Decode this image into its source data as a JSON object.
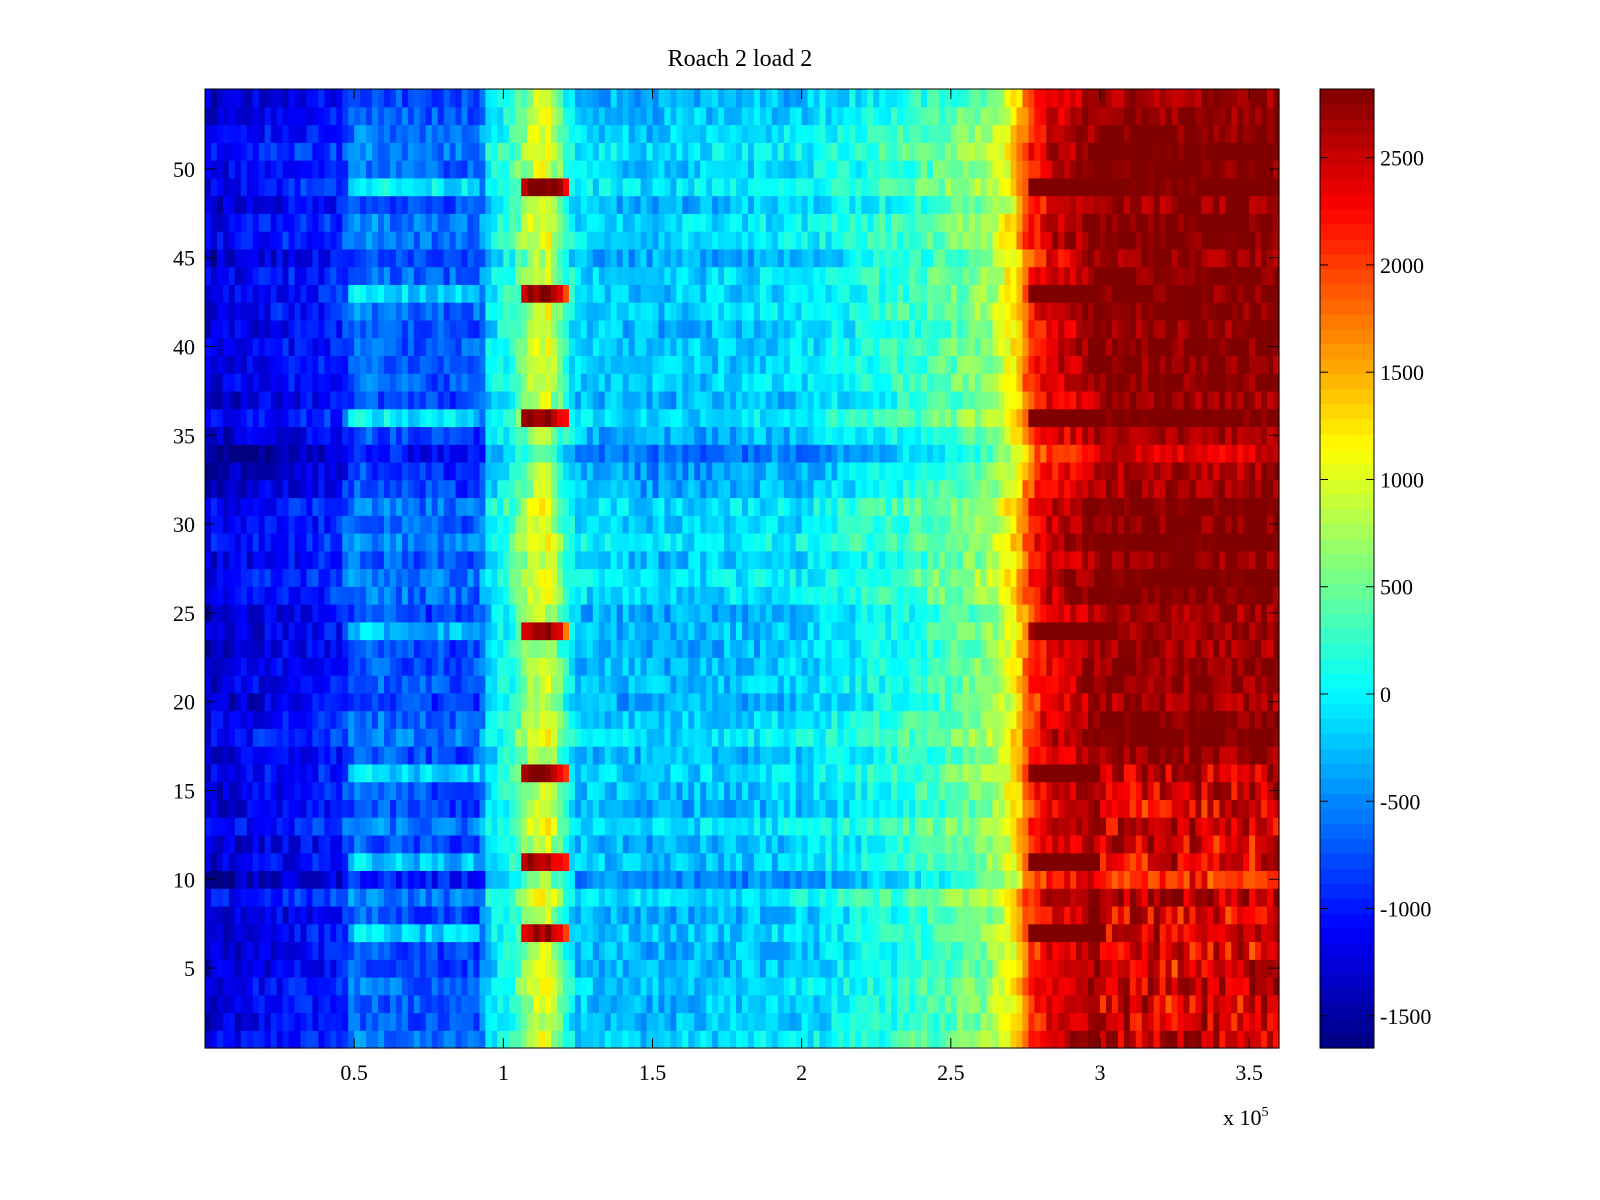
{
  "chart_data": {
    "type": "heatmap",
    "title": "Roach 2 load 2",
    "xlabel": "",
    "ylabel": "",
    "x_multiplier_label": "x 10",
    "x_multiplier_exponent": "5",
    "xlim": [
      0,
      360000
    ],
    "ylim": [
      0.5,
      54.5
    ],
    "rows": 54,
    "x_ticks": [
      {
        "value": 50000,
        "label": "0.5"
      },
      {
        "value": 100000,
        "label": "1"
      },
      {
        "value": 150000,
        "label": "1.5"
      },
      {
        "value": 200000,
        "label": "2"
      },
      {
        "value": 250000,
        "label": "2.5"
      },
      {
        "value": 300000,
        "label": "3"
      },
      {
        "value": 350000,
        "label": "3.5"
      }
    ],
    "y_ticks": [
      {
        "value": 5,
        "label": "5"
      },
      {
        "value": 10,
        "label": "10"
      },
      {
        "value": 15,
        "label": "15"
      },
      {
        "value": 20,
        "label": "20"
      },
      {
        "value": 25,
        "label": "25"
      },
      {
        "value": 30,
        "label": "30"
      },
      {
        "value": 35,
        "label": "35"
      },
      {
        "value": 40,
        "label": "40"
      },
      {
        "value": 45,
        "label": "45"
      },
      {
        "value": 50,
        "label": "50"
      }
    ],
    "colorbar": {
      "colormap": "jet",
      "clim": [
        -1650,
        2820
      ],
      "ticks": [
        {
          "value": -1500,
          "label": "-1500"
        },
        {
          "value": -1000,
          "label": "-1000"
        },
        {
          "value": -500,
          "label": "-500"
        },
        {
          "value": 0,
          "label": "0"
        },
        {
          "value": 500,
          "label": "500"
        },
        {
          "value": 1000,
          "label": "1000"
        },
        {
          "value": 1500,
          "label": "1500"
        },
        {
          "value": 2000,
          "label": "2000"
        },
        {
          "value": 2500,
          "label": "2500"
        }
      ]
    },
    "profile": {
      "x": [
        0,
        20000,
        45000,
        50000,
        70000,
        92000,
        95000,
        103000,
        110000,
        115000,
        121000,
        125000,
        150000,
        200000,
        240000,
        262000,
        268000,
        272000,
        276000,
        283000,
        292000,
        300000,
        360000
      ],
      "value": [
        -1250,
        -1100,
        -950,
        -550,
        -700,
        -700,
        -100,
        250,
        900,
        1000,
        250,
        -150,
        -250,
        -100,
        300,
        650,
        1000,
        1300,
        2000,
        2450,
        2550,
        2820,
        2820
      ]
    },
    "hot_spot_rows": [
      7,
      11,
      16,
      24,
      36,
      43,
      49
    ],
    "cool_rows": [
      10,
      33,
      34
    ]
  }
}
